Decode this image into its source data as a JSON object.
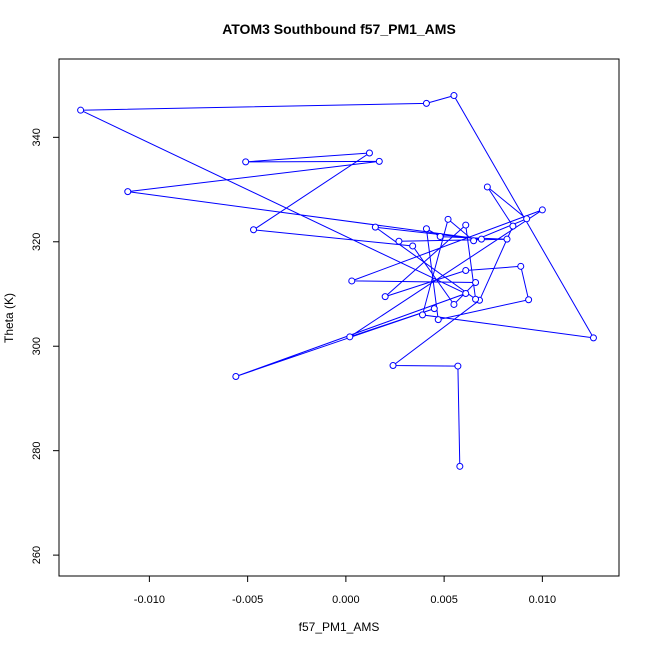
{
  "chart_data": {
    "type": "line",
    "title": "ATOM3 Southbound f57_PM1_AMS",
    "xlabel": "f57_PM1_AMS",
    "ylabel": "Theta (K)",
    "xlim": [
      -0.0146,
      0.0139
    ],
    "ylim": [
      256,
      355
    ],
    "xticks": [
      -0.01,
      -0.005,
      0.0,
      0.005,
      0.01
    ],
    "xtick_labels": [
      "-0.010",
      "-0.005",
      "0.000",
      "0.005",
      "0.010"
    ],
    "yticks": [
      260,
      280,
      300,
      320,
      340
    ],
    "ytick_labels": [
      "260",
      "280",
      "300",
      "320",
      "340"
    ],
    "grid": false,
    "legend": "none",
    "line_color": "#0000ff",
    "marker": "open-circle",
    "series": [
      {
        "x": [
          0.0058,
          0.0057,
          0.0024,
          0.0068,
          0.0085,
          0.0072,
          0.0092,
          0.0065,
          0.0052,
          0.0039,
          0.0126,
          0.0055,
          0.0041,
          -0.0135,
          0.0061,
          -0.0056,
          0.0045,
          0.0002,
          0.01,
          0.0003,
          0.0066,
          0.0055,
          0.0034,
          -0.0047,
          0.0012,
          -0.0051,
          0.0017,
          -0.0111,
          0.0069,
          0.0015,
          0.0066,
          0.0061,
          0.002,
          0.0061,
          0.0089,
          0.0093,
          0.0047,
          0.0041,
          0.0048,
          0.0082,
          0.0027
        ],
        "y": [
          277.0,
          296.2,
          296.3,
          308.8,
          323.0,
          330.5,
          324.4,
          320.2,
          324.3,
          306.0,
          301.6,
          348.0,
          346.5,
          345.2,
          310.1,
          294.2,
          307.2,
          301.8,
          326.1,
          312.5,
          312.2,
          308.0,
          319.2,
          322.3,
          337.0,
          335.3,
          335.4,
          329.6,
          320.5,
          322.8,
          309.0,
          323.2,
          309.5,
          314.5,
          315.3,
          308.9,
          305.1,
          322.5,
          321.0,
          320.5,
          320.1
        ]
      }
    ]
  }
}
